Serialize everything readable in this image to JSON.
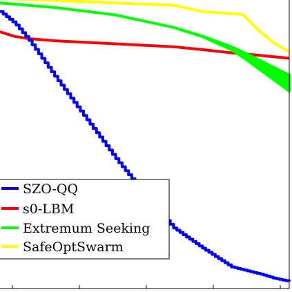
{
  "chart_data": {
    "type": "line",
    "title": "",
    "xlabel": "",
    "ylabel": "",
    "xlim": [
      0,
      100
    ],
    "ylim": [
      0,
      100
    ],
    "grid": false,
    "legend_position": "lower-left",
    "series": [
      {
        "name": "SZO-QQ",
        "color": "#0000ff",
        "style": "stepped",
        "x": [
          0,
          5,
          10,
          20,
          30,
          40,
          50,
          60,
          70,
          80,
          90,
          95,
          100
        ],
        "y": [
          96,
          92,
          86,
          72,
          58.5,
          45,
          32.5,
          21,
          14,
          7.5,
          5,
          3.5,
          2.5
        ]
      },
      {
        "name": "s0-LBM",
        "color": "#ff0000",
        "style": "solid",
        "x": [
          0,
          5,
          10,
          20,
          30,
          40,
          50,
          60,
          70,
          80,
          90,
          100
        ],
        "y": [
          89,
          87.4,
          86.6,
          85.8,
          85.3,
          84.8,
          84.3,
          83.8,
          82.8,
          81.7,
          80.8,
          79.8
        ]
      },
      {
        "name": "Extremum Seeking",
        "color": "#00ff00",
        "style": "band",
        "x": [
          0,
          20,
          40,
          60,
          70,
          80,
          85,
          90,
          100
        ],
        "y": [
          99,
          97.3,
          94.8,
          90.5,
          87.5,
          83.5,
          80.5,
          77.5,
          71.5
        ],
        "y_upper": [
          99,
          97.3,
          94.8,
          90.5,
          87.5,
          83.8,
          81.5,
          79,
          74
        ],
        "y_lower": [
          99,
          97.3,
          94.8,
          90.5,
          87.3,
          82.8,
          79.5,
          75.8,
          68.5
        ]
      },
      {
        "name": "SafeOptSwarm",
        "color": "#ffff00",
        "style": "solid",
        "x": [
          0,
          10,
          20,
          40,
          60,
          70,
          84,
          90,
          95,
          100
        ],
        "y": [
          100.5,
          100.2,
          99.8,
          99,
          98.2,
          96,
          95,
          89,
          85,
          82
        ]
      }
    ]
  }
}
